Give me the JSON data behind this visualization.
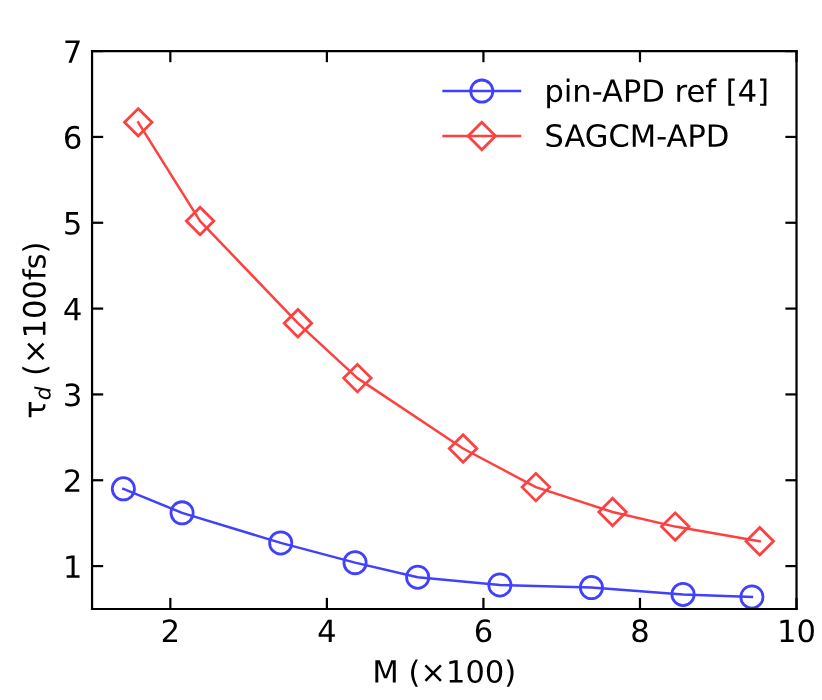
{
  "chart_data": {
    "type": "line",
    "xlabel": "M (×100)",
    "ylabel": "τ$_{d}$ (×100fs)",
    "xlim": [
      1,
      10
    ],
    "xticks": [
      2,
      4,
      6,
      8,
      10
    ],
    "ylim": [
      0.5,
      7
    ],
    "yticks": [
      1,
      2,
      3,
      4,
      5,
      6,
      7
    ],
    "grid": false,
    "legend": "top right",
    "line_style": "solid",
    "series": [
      {
        "name": "pin-APD ref [4]",
        "color": "#4040ff",
        "marker": "circle",
        "x": [
          1.4,
          2.15,
          3.41,
          4.36,
          5.16,
          6.21,
          7.38,
          8.55,
          9.43
        ],
        "values": [
          1.9,
          1.62,
          1.27,
          1.04,
          0.87,
          0.78,
          0.75,
          0.67,
          0.64
        ]
      },
      {
        "name": "SAGCM-APD",
        "color": "#ff4040",
        "marker": "diamond",
        "x": [
          1.59,
          2.38,
          3.63,
          4.39,
          5.74,
          6.67,
          7.65,
          8.45,
          9.53
        ],
        "values": [
          6.17,
          5.02,
          3.83,
          3.19,
          2.37,
          1.92,
          1.63,
          1.46,
          1.29
        ]
      }
    ]
  }
}
